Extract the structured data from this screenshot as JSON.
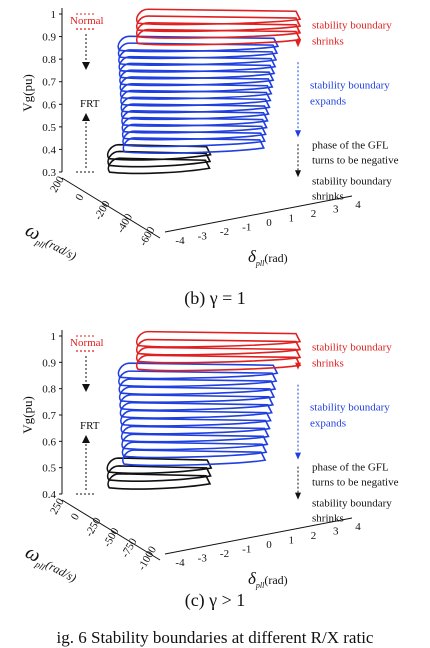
{
  "colors": {
    "red": "#e02020",
    "blue": "#1f3fe0",
    "black": "#111111"
  },
  "panels": [
    {
      "id": "b",
      "caption": "(b) γ = 1",
      "y_axis_label": "Vg(pu)",
      "y_ticks": [
        "1",
        "0.9",
        "0.8",
        "0.7",
        "0.6",
        "0.5",
        "0.4",
        "0.3"
      ],
      "y_range": [
        0.3,
        1.0
      ],
      "omega_label": "ω",
      "omega_sub": "pll",
      "omega_unit": "(rad/s)",
      "omega_ticks": [
        "200",
        "0",
        "-200",
        "-400",
        "-600"
      ],
      "delta_label": "δ",
      "delta_sub": "pll",
      "delta_unit": "(rad)",
      "delta_ticks": [
        "-4",
        "-3",
        "-2",
        "-1",
        "0",
        "1",
        "2",
        "3",
        "4"
      ],
      "normal_label": "Normal",
      "frt_label": "FRT",
      "annotations": {
        "red": [
          "stability boundary",
          "shrinks"
        ],
        "blue": [
          "stability boundary",
          "expands"
        ],
        "black": [
          "phase of the GFL",
          "turns to be negative",
          "stability boundary",
          "shrinks"
        ]
      },
      "levels": {
        "red": [
          0.99,
          0.96,
          0.93,
          0.9
        ],
        "blue": [
          0.87,
          0.84,
          0.81,
          0.78,
          0.75,
          0.72,
          0.69,
          0.66,
          0.63,
          0.6,
          0.57,
          0.54,
          0.51,
          0.48,
          0.45,
          0.42
        ],
        "black": [
          0.39,
          0.36,
          0.33
        ]
      }
    },
    {
      "id": "c",
      "caption": "(c) γ > 1",
      "y_axis_label": "Vg(pu)",
      "y_ticks": [
        "1",
        "0.9",
        "0.8",
        "0.7",
        "0.6",
        "0.5",
        "0.4"
      ],
      "y_range": [
        0.4,
        1.0
      ],
      "omega_label": "ω",
      "omega_sub": "pll",
      "omega_unit": "(rad/s)",
      "omega_ticks": [
        "250",
        "0",
        "-250",
        "-500",
        "-750",
        "-1000"
      ],
      "delta_label": "δ",
      "delta_sub": "pll",
      "delta_unit": "(rad)",
      "delta_ticks": [
        "-4",
        "-3",
        "-2",
        "-1",
        "0",
        "1",
        "2",
        "3",
        "4"
      ],
      "normal_label": "Normal",
      "frt_label": "FRT",
      "annotations": {
        "red": [
          "stability boundary",
          "shrinks"
        ],
        "blue": [
          "stability boundary",
          "expands"
        ],
        "black": [
          "phase of the GFL",
          "turns to be negative",
          "stability boundary",
          "shrinks"
        ]
      },
      "levels": {
        "red": [
          0.99,
          0.96,
          0.93,
          0.9
        ],
        "blue": [
          0.87,
          0.84,
          0.81,
          0.78,
          0.75,
          0.72,
          0.69,
          0.66,
          0.63,
          0.6,
          0.57,
          0.54
        ],
        "black": [
          0.51,
          0.48,
          0.45
        ]
      }
    }
  ],
  "figure_caption": "ig. 6   Stability boundaries at different R/X ratic"
}
